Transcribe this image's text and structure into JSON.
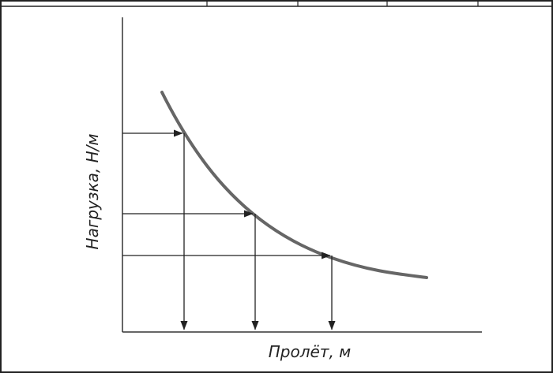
{
  "diagram": {
    "x_axis_label": "Пролёт, м",
    "y_axis_label": "Нагрузка, Н/м",
    "curve": {
      "shape": "decreasing-curve",
      "stroke_color": "#666666"
    },
    "reference_lines": [
      {
        "name": "reference-1"
      },
      {
        "name": "reference-2"
      },
      {
        "name": "reference-3"
      }
    ],
    "colors": {
      "axes": "#333333",
      "guides": "#222222",
      "frame": "#222222",
      "background": "#ffffff"
    }
  }
}
